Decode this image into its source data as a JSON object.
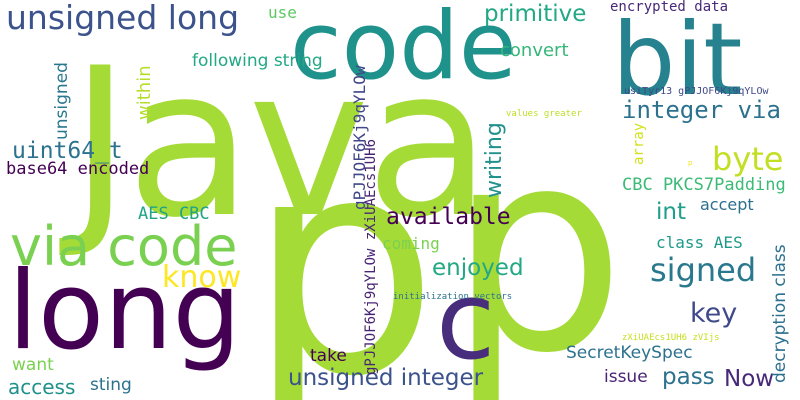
{
  "words": [
    {
      "id": "java",
      "text": "Java",
      "color": "#a5db36"
    },
    {
      "id": "p-left",
      "text": "p",
      "color": "#a5db36"
    },
    {
      "id": "p-right",
      "text": "p",
      "color": "#a5db36"
    },
    {
      "id": "code",
      "text": "code",
      "color": "#20928c"
    },
    {
      "id": "bit",
      "text": "bit",
      "color": "#26828e"
    },
    {
      "id": "long",
      "text": "long",
      "color": "#440154"
    },
    {
      "id": "c",
      "text": "c",
      "color": "#472d7b"
    },
    {
      "id": "via-code",
      "text": "via code",
      "color": "#7ad151"
    },
    {
      "id": "unsigned-long",
      "text": "unsigned long",
      "color": "#3b528b"
    },
    {
      "id": "signed",
      "text": "signed",
      "color": "#2a788e"
    },
    {
      "id": "byte",
      "text": "byte",
      "color": "#c2df23"
    },
    {
      "id": "know",
      "text": "know",
      "color": "#fde725"
    },
    {
      "id": "key",
      "text": "key",
      "color": "#3e4989"
    },
    {
      "id": "uint64-t",
      "text": "uint64_t",
      "color": "#2c728e"
    },
    {
      "id": "primitive",
      "text": "primitive",
      "color": "#22a884"
    },
    {
      "id": "integer-via",
      "text": "integer via",
      "color": "#2c728e"
    },
    {
      "id": "available",
      "text": "available",
      "color": "#440154"
    },
    {
      "id": "enjoyed",
      "text": "enjoyed",
      "color": "#22a884"
    },
    {
      "id": "unsigned-integer",
      "text": "unsigned integer",
      "color": "#3b528b"
    },
    {
      "id": "pass",
      "text": "pass",
      "color": "#2c728e"
    },
    {
      "id": "now",
      "text": "Now",
      "color": "#482878"
    },
    {
      "id": "int",
      "text": "int",
      "color": "#1f9e89"
    },
    {
      "id": "use",
      "text": "use",
      "color": "#21918c"
    },
    {
      "id": "encrypted-data",
      "text": "encrypted data",
      "color": "#5ec962"
    },
    {
      "id": "following-string",
      "text": "following string",
      "color": "#482878"
    },
    {
      "id": "convert",
      "text": "convert",
      "color": "#22a884"
    },
    {
      "id": "within",
      "text": "within",
      "color": "#35b779"
    },
    {
      "id": "unsigned-v",
      "text": "unsigned",
      "color": "#b5de2b"
    },
    {
      "id": "writing",
      "text": "writing",
      "color": "#2a788e"
    },
    {
      "id": "base64-encoded",
      "text": "base64 encoded",
      "color": "#440154"
    },
    {
      "id": "aes-cbc",
      "text": "AES CBC",
      "color": "#20a386"
    },
    {
      "id": "cbc-pkcs7",
      "text": "CBC PKCS7Padding",
      "color": "#3bbb75"
    },
    {
      "id": "accept",
      "text": "accept",
      "color": "#2d708e"
    },
    {
      "id": "class-aes",
      "text": "class AES",
      "color": "#1f9a8a"
    },
    {
      "id": "decryption-class",
      "text": "decryption class",
      "color": "#2d708e"
    },
    {
      "id": "coming",
      "text": "coming",
      "color": "#7ad151"
    },
    {
      "id": "secretkeyspec",
      "text": "SecretKeySpec",
      "color": "#2c728e"
    },
    {
      "id": "take",
      "text": "take",
      "color": "#440154"
    },
    {
      "id": "issue",
      "text": "issue",
      "color": "#482475"
    },
    {
      "id": "want",
      "text": "want",
      "color": "#7ad151"
    },
    {
      "id": "access",
      "text": "access",
      "color": "#21918c"
    },
    {
      "id": "sting",
      "text": "sting",
      "color": "#2c728e"
    },
    {
      "id": "array",
      "text": "array",
      "color": "#d2e21b"
    },
    {
      "id": "gpjj-mid-v",
      "text": "gPJJOF6Kj9qYLOw",
      "color": "#404688"
    },
    {
      "id": "usityr-v",
      "text": "usiTyr13 gPJJOF6Kj9qYLOw",
      "color": "#482475"
    },
    {
      "id": "gpjj-small",
      "text": "gPJJOF6Kj9qYLOw zXiUAEcs1UH6",
      "color": "#3e4989"
    },
    {
      "id": "values-greater",
      "text": "values greater",
      "color": "#bddf26"
    },
    {
      "id": "initialization-vectors",
      "text": "initialization vectors",
      "color": "#2c728e"
    },
    {
      "id": "zxiu-small",
      "text": "zXiUAEcs1UH6 zVIjs",
      "color": "#c8e020"
    },
    {
      "id": "tiny-p",
      "text": "p",
      "color": "#f1e51d"
    }
  ]
}
